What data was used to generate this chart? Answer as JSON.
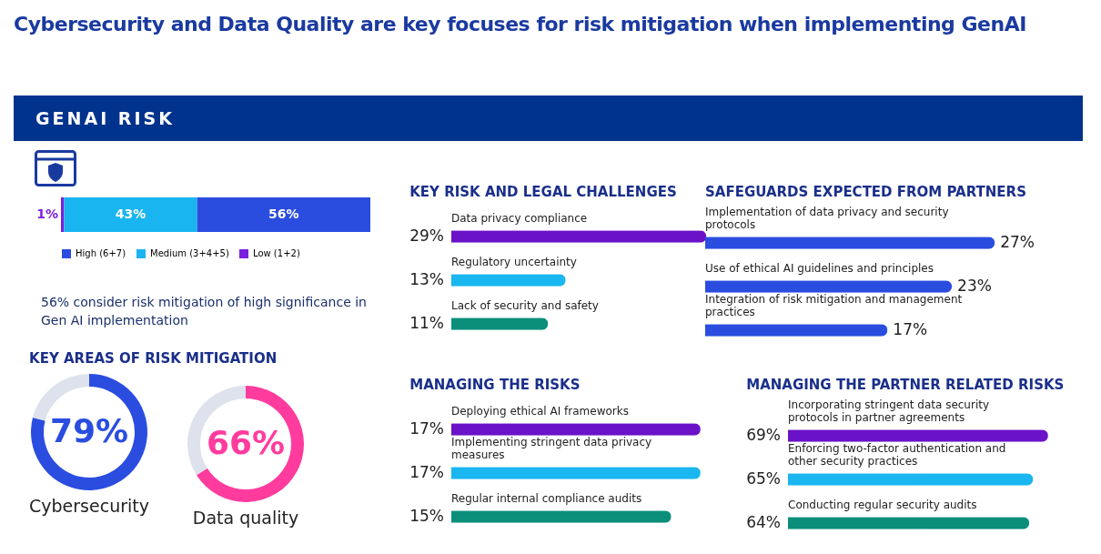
{
  "chart_data": [
    {
      "type": "bar",
      "title": "Cybersecurity and Data Quality are key focuses for risk mitigation when implementing GenAI",
      "subtitle": "GENAI RISK",
      "orientation": "horizontal",
      "stacked": true,
      "categories": [
        null
      ],
      "legend": "bottom",
      "series": [
        {
          "name": "Low (1+2)",
          "color": "#7a1fe0",
          "values": [
            1
          ],
          "value_labels": [
            "1%"
          ]
        },
        {
          "name": "Medium (3+4+5)",
          "color": "#18b5f0",
          "values": [
            43
          ],
          "value_labels": [
            "43%"
          ]
        },
        {
          "name": "High (6+7)",
          "color": "#2a4de0",
          "values": [
            56
          ],
          "value_labels": [
            "56%"
          ]
        }
      ],
      "annotations": [
        "56% consider risk mitigation of high significance in Gen AI implementation"
      ]
    },
    {
      "type": "donut",
      "title": "KEY AREAS OF RISK MITIGATION",
      "categories": [
        "Cybersecurity",
        null
      ],
      "values": [
        79,
        21
      ],
      "colors": [
        "#2a4de0",
        "#dde2ec"
      ],
      "value_labels": [
        "79%",
        null
      ]
    },
    {
      "type": "donut",
      "categories": [
        "Data quality",
        null
      ],
      "values": [
        66,
        34
      ],
      "colors": [
        "#ff3c9e",
        "#dde2ec"
      ],
      "value_labels": [
        "66%",
        null
      ]
    },
    {
      "type": "bar",
      "title": "KEY RISK AND LEGAL CHALLENGES",
      "orientation": "horizontal",
      "categories": [
        "Data privacy compliance",
        "Regulatory uncertainty",
        "Lack of security and safety"
      ],
      "values": [
        29,
        13,
        11
      ],
      "colors": [
        "#6a12c8",
        "#19b6f0",
        "#0b8f7b"
      ],
      "value_labels": [
        "29%",
        "13%",
        "11%"
      ]
    },
    {
      "type": "bar",
      "title": "MANAGING THE RISKS",
      "orientation": "horizontal",
      "categories": [
        "Deploying ethical AI frameworks",
        "Implementing stringent data privacy measures",
        "Regular internal compliance audits"
      ],
      "values": [
        17,
        17,
        15
      ],
      "colors": [
        "#6a12c8",
        "#19b6f0",
        "#0b8f7b"
      ],
      "value_labels": [
        "17%",
        "17%",
        "15%"
      ]
    },
    {
      "type": "bar",
      "title": "SAFEGUARDS EXPECTED FROM PARTNERS",
      "orientation": "horizontal",
      "categories": [
        "Implementation of data privacy and security protocols",
        "Use of ethical AI guidelines and principles",
        "Integration of risk mitigation and management practices"
      ],
      "values": [
        27,
        23,
        17
      ],
      "color": "#2a4de0",
      "value_labels": [
        "27%",
        "23%",
        "17%"
      ]
    },
    {
      "type": "bar",
      "title": "MANAGING THE PARTNER RELATED RISKS",
      "orientation": "horizontal",
      "categories": [
        "Incorporating stringent data security protocols in partner agreements",
        "Enforcing two-factor authentication and other security practices",
        "Conducting regular security audits"
      ],
      "values": [
        69,
        65,
        64
      ],
      "colors": [
        "#6a12c8",
        "#19b6f0",
        "#0b8f7b"
      ],
      "value_labels": [
        "69%",
        "65%",
        "64%"
      ]
    }
  ]
}
